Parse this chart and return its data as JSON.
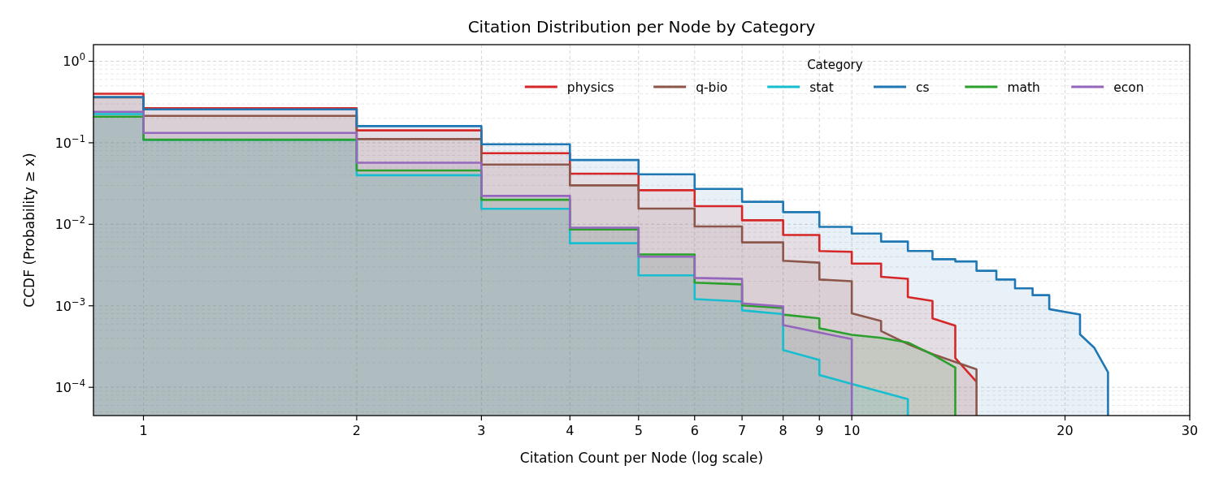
{
  "chart_data": {
    "type": "area",
    "title": "Citation Distribution per Node by Category",
    "xlabel": "Citation Count per Node (log scale)",
    "ylabel": "CCDF (Probability ≥ x)",
    "legend_title": "Category",
    "legend": "top right",
    "log": "xy",
    "grid": true,
    "line_style": "solid",
    "xlim": [
      0.85,
      30
    ],
    "xticks": [
      1,
      2,
      3,
      4,
      5,
      6,
      7,
      8,
      9,
      10,
      20,
      30
    ],
    "ylim": [
      4.5e-05,
      1.6
    ],
    "yticks": [
      {
        "value": 1,
        "label": "10$^{0}$"
      },
      {
        "value": 0.1,
        "label": "10$^{−1}$"
      },
      {
        "value": 0.01,
        "label": "10$^{−2}$"
      },
      {
        "value": 0.001,
        "label": "10$^{−3}$"
      },
      {
        "value": 0.0001,
        "label": "10$^{−4}$"
      }
    ],
    "series": [
      {
        "name": "physics",
        "color": "#d62728",
        "x": [
          0.85,
          1,
          1,
          2,
          2,
          3,
          3,
          4,
          4,
          5,
          5,
          6,
          6,
          7,
          7,
          8,
          8,
          9,
          9,
          10,
          10,
          11,
          11,
          12,
          12,
          13,
          13,
          14,
          14,
          15
        ],
        "values": [
          0.4,
          0.4,
          0.265,
          0.265,
          0.142,
          0.142,
          0.0745,
          0.0745,
          0.0417,
          0.0417,
          0.0262,
          0.0262,
          0.0167,
          0.0167,
          0.0112,
          0.0112,
          0.0074,
          0.0074,
          0.0047,
          0.0046,
          0.0033,
          0.0033,
          0.00227,
          0.00214,
          0.00128,
          0.00115,
          0.0007,
          0.00057,
          0.000228,
          0.000117
        ]
      },
      {
        "name": "q-bio",
        "color": "#8c564b",
        "x": [
          0.85,
          1,
          1,
          2,
          2,
          3,
          3,
          4,
          4,
          5,
          5,
          6,
          6,
          7,
          7,
          8,
          8,
          9,
          9,
          10,
          10,
          11,
          11,
          12,
          13,
          15,
          15
        ],
        "values": [
          0.36,
          0.36,
          0.214,
          0.214,
          0.111,
          0.111,
          0.054,
          0.054,
          0.03,
          0.03,
          0.0156,
          0.0156,
          0.0094,
          0.0094,
          0.006,
          0.006,
          0.00357,
          0.00338,
          0.0021,
          0.002,
          0.00081,
          0.00065,
          0.00049,
          0.00034,
          0.000256,
          0.000166,
          4.5e-05
        ]
      },
      {
        "name": "stat",
        "color": "#17becf",
        "x": [
          0.85,
          1,
          1,
          2,
          2,
          3,
          3,
          4,
          4,
          5,
          5,
          6,
          6,
          7,
          7,
          8,
          8,
          9,
          9,
          10,
          12,
          12
        ],
        "values": [
          0.225,
          0.225,
          0.108,
          0.108,
          0.04,
          0.04,
          0.0155,
          0.0155,
          0.00586,
          0.00586,
          0.00236,
          0.00236,
          0.00121,
          0.00113,
          0.00088,
          0.00079,
          0.000287,
          0.000216,
          0.000142,
          0.00011,
          7.14e-05,
          4.5e-05
        ]
      },
      {
        "name": "cs",
        "color": "#1f77b4",
        "x": [
          0.85,
          1,
          1,
          2,
          2,
          3,
          3,
          4,
          4,
          5,
          5,
          6,
          6,
          7,
          7,
          8,
          8,
          9,
          9,
          10,
          10,
          11,
          11,
          12,
          12,
          13,
          13,
          14,
          14,
          15,
          15,
          16,
          16,
          17,
          17,
          18,
          18,
          19,
          19,
          21,
          21,
          22,
          23,
          23
        ],
        "values": [
          0.365,
          0.365,
          0.257,
          0.257,
          0.16,
          0.16,
          0.096,
          0.096,
          0.0615,
          0.0615,
          0.041,
          0.041,
          0.0272,
          0.0272,
          0.0189,
          0.0189,
          0.0141,
          0.0141,
          0.0093,
          0.0093,
          0.0077,
          0.0077,
          0.00614,
          0.00614,
          0.0047,
          0.0047,
          0.00373,
          0.00373,
          0.0035,
          0.0035,
          0.00269,
          0.00269,
          0.0021,
          0.0021,
          0.00164,
          0.00164,
          0.00135,
          0.00135,
          0.00091,
          0.00078,
          0.000446,
          0.000305,
          0.000153,
          4.5e-05
        ]
      },
      {
        "name": "math",
        "color": "#2ca02c",
        "x": [
          0.85,
          1,
          1,
          2,
          2,
          3,
          3,
          4,
          4,
          5,
          5,
          6,
          6,
          7,
          7,
          8,
          8,
          9,
          9,
          10,
          11,
          12,
          13,
          14,
          14
        ],
        "values": [
          0.209,
          0.209,
          0.109,
          0.109,
          0.0457,
          0.0457,
          0.02,
          0.02,
          0.00865,
          0.00865,
          0.00426,
          0.00426,
          0.00192,
          0.00183,
          0.00101,
          0.00094,
          0.00078,
          0.0007,
          0.00053,
          0.00044,
          0.000404,
          0.000355,
          0.000252,
          0.000175,
          4.5e-05
        ]
      },
      {
        "name": "econ",
        "color": "#9467bd",
        "x": [
          0.85,
          1,
          1,
          2,
          2,
          3,
          3,
          4,
          4,
          5,
          5,
          6,
          6,
          7,
          7,
          8,
          8,
          10,
          10
        ],
        "values": [
          0.24,
          0.24,
          0.132,
          0.132,
          0.057,
          0.057,
          0.0223,
          0.0223,
          0.0091,
          0.0091,
          0.004,
          0.004,
          0.0022,
          0.00214,
          0.00107,
          0.00098,
          0.00058,
          0.00039,
          4.5e-05
        ]
      }
    ]
  }
}
